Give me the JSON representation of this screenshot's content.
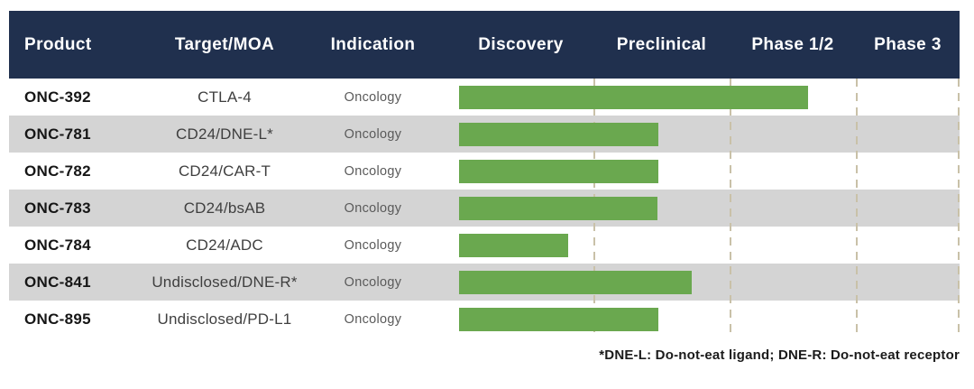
{
  "header": {
    "columns": {
      "product": "Product",
      "target": "Target/MOA",
      "indication": "Indication"
    },
    "phases": [
      "Discovery",
      "Preclinical",
      "Phase 1/2",
      "Phase 3"
    ]
  },
  "table": {
    "rows": [
      {
        "product": "ONC-392",
        "target": "CTLA-4",
        "indication": "Oncology",
        "stage": "Phase 1/2",
        "bar_width_pct": 68.3
      },
      {
        "product": "ONC-781",
        "target": "CD24/DNE-L*",
        "indication": "Oncology",
        "stage": "Preclinical",
        "bar_width_pct": 39.0
      },
      {
        "product": "ONC-782",
        "target": "CD24/CAR-T",
        "indication": "Oncology",
        "stage": "Preclinical",
        "bar_width_pct": 39.0
      },
      {
        "product": "ONC-783",
        "target": "CD24/bsAB",
        "indication": "Oncology",
        "stage": "Preclinical",
        "bar_width_pct": 38.8
      },
      {
        "product": "ONC-784",
        "target": "CD24/ADC",
        "indication": "Oncology",
        "stage": "Discovery",
        "bar_width_pct": 21.3
      },
      {
        "product": "ONC-841",
        "target": "Undisclosed/DNE-R*",
        "indication": "Oncology",
        "stage": "Preclinical",
        "bar_width_pct": 45.5
      },
      {
        "product": "ONC-895",
        "target": "Undisclosed/PD-L1",
        "indication": "Oncology",
        "stage": "Preclinical",
        "bar_width_pct": 39.0
      }
    ],
    "gridlines_pct": [
      28.4,
      55.0,
      79.7,
      99.7
    ],
    "footnote": "*DNE-L: Do-not-eat ligand; DNE-R: Do-not-eat receptor"
  },
  "colors": {
    "header_navy": "#20304e",
    "bar_green": "#6aa84f",
    "row_stripe_gray": "#d4d4d4",
    "gridline_tan": "#c9c1a8",
    "header_text": "#ffffff",
    "product_text": "#161616",
    "target_text": "#3f3f3f",
    "indication_text": "#5a5a5a",
    "footnote_text": "#1b1b1b"
  },
  "chart_data": {
    "type": "bar",
    "orientation": "horizontal",
    "title": "",
    "categories": [
      "ONC-392",
      "ONC-781",
      "ONC-782",
      "ONC-783",
      "ONC-784",
      "ONC-841",
      "ONC-895"
    ],
    "targets": [
      "CTLA-4",
      "CD24/DNE-L*",
      "CD24/CAR-T",
      "CD24/bsAB",
      "CD24/ADC",
      "Undisclosed/DNE-R*",
      "Undisclosed/PD-L1"
    ],
    "indications": [
      "Oncology",
      "Oncology",
      "Oncology",
      "Oncology",
      "Oncology",
      "Oncology",
      "Oncology"
    ],
    "x_axis_stages": [
      "Discovery",
      "Preclinical",
      "Phase 1/2",
      "Phase 3"
    ],
    "values_phase_units": [
      2.62,
      1.48,
      1.48,
      1.47,
      0.81,
      1.72,
      1.47
    ],
    "xlim": [
      0,
      4
    ],
    "grid": "dashed vertical stage separators",
    "legend": "none",
    "bar_color": "#6aa84f"
  }
}
